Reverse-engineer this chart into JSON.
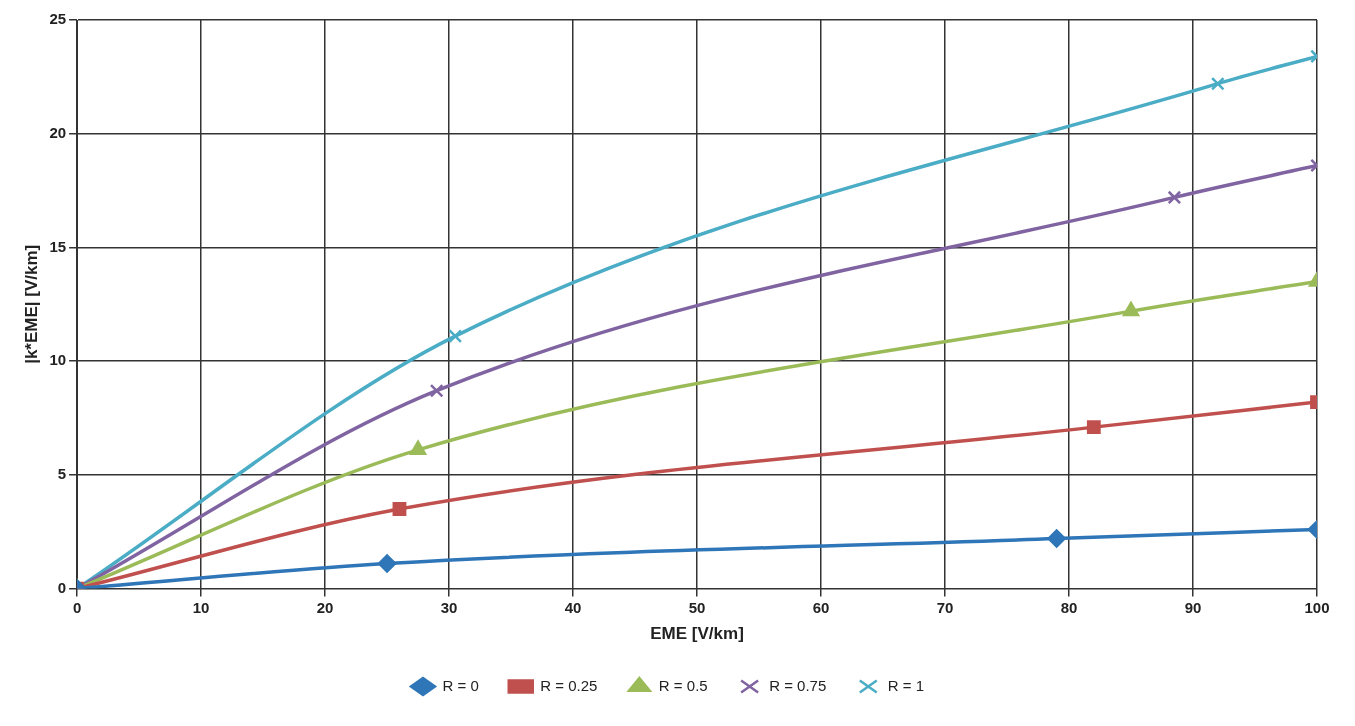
{
  "chart_data": {
    "type": "line",
    "xlabel": "EME [V/km]",
    "ylabel": "|k*EME| [V/km]",
    "xlim": [
      0,
      100
    ],
    "xticks": [
      0,
      10,
      20,
      30,
      40,
      50,
      60,
      70,
      80,
      90,
      100
    ],
    "ylim": [
      0,
      25
    ],
    "yticks": [
      0,
      5,
      10,
      15,
      20,
      25
    ],
    "grid": true,
    "legend": "bottom",
    "line_style": "solid",
    "series": [
      {
        "name": "R = 0",
        "color": "#2f76b8",
        "marker": "diamond",
        "x": [
          0,
          25,
          79,
          100
        ],
        "values": [
          0,
          1.1,
          2.2,
          2.6
        ]
      },
      {
        "name": "R = 0.25",
        "color": "#c0504d",
        "marker": "square",
        "x": [
          0,
          26,
          82,
          100
        ],
        "values": [
          0,
          3.5,
          7.1,
          8.2
        ]
      },
      {
        "name": "R = 0.5",
        "color": "#9bbb59",
        "marker": "triangle",
        "x": [
          0,
          27.5,
          85,
          100
        ],
        "values": [
          0,
          6.1,
          12.2,
          13.5
        ]
      },
      {
        "name": "R = 0.75",
        "color": "#8064a2",
        "marker": "cross",
        "x": [
          0,
          29,
          88.5,
          100
        ],
        "values": [
          0,
          8.7,
          17.2,
          18.6
        ]
      },
      {
        "name": "R = 1",
        "color": "#4bacc6",
        "marker": "cross",
        "x": [
          0,
          30.5,
          92,
          100
        ],
        "values": [
          0,
          11.1,
          22.2,
          23.4
        ]
      }
    ]
  }
}
